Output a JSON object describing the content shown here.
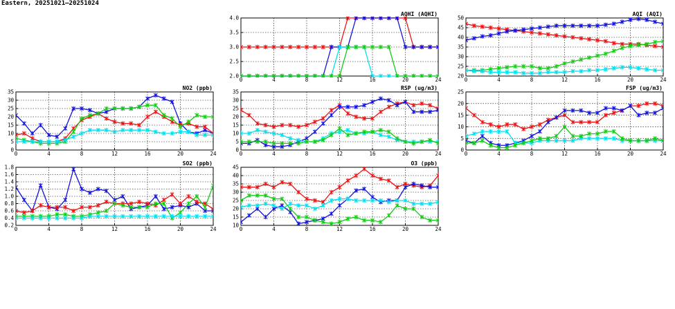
{
  "page": {
    "title": "Eastern, 20251021–20251024"
  },
  "series_colors": {
    "red": "#ee1111",
    "blue": "#1111dd",
    "green": "#11cc11",
    "cyan": "#00e0ee"
  },
  "chart_data": [
    {
      "id": "aqhi",
      "type": "line",
      "title": "AQHI (AQHI)",
      "xlim": [
        0,
        24
      ],
      "ylim": [
        2,
        4
      ],
      "xticks": [
        "0",
        "4",
        "8",
        "12",
        "16",
        "20",
        "24"
      ],
      "yticks": [
        "2.0",
        "2.5",
        "3.0",
        "3.5",
        "4.0"
      ],
      "series": [
        {
          "color": "red",
          "values": [
            3,
            3,
            3,
            3,
            3,
            3,
            3,
            3,
            3,
            3,
            3,
            3,
            3,
            4,
            4,
            4,
            4,
            4,
            4,
            4,
            4,
            3,
            3,
            3,
            3
          ]
        },
        {
          "color": "blue",
          "values": [
            2,
            2,
            2,
            2,
            2,
            2,
            2,
            2,
            2,
            2,
            2,
            3,
            3,
            3,
            4,
            4,
            4,
            4,
            4,
            4,
            3,
            3,
            3,
            3,
            3
          ]
        },
        {
          "color": "cyan",
          "values": [
            2,
            2,
            2,
            2,
            2,
            2,
            2,
            2,
            2,
            2,
            2,
            2,
            3,
            3,
            3,
            3,
            2,
            2,
            2,
            2,
            2,
            2,
            2,
            2,
            2
          ]
        },
        {
          "color": "green",
          "values": [
            2,
            2,
            2,
            2,
            2,
            2,
            2,
            2,
            2,
            2,
            2,
            2,
            2,
            3,
            3,
            3,
            3,
            3,
            3,
            2,
            2,
            2,
            2,
            2,
            2
          ]
        }
      ]
    },
    {
      "id": "aqi",
      "type": "line",
      "title": "AQI (AQI)",
      "xlim": [
        0,
        24
      ],
      "ylim": [
        20,
        50
      ],
      "xticks": [
        "0",
        "4",
        "8",
        "12",
        "16",
        "20",
        "24"
      ],
      "yticks": [
        "20",
        "25",
        "30",
        "35",
        "40",
        "45",
        "50"
      ],
      "series": [
        {
          "color": "red",
          "values": [
            47,
            46,
            45.5,
            45,
            44.5,
            44,
            43.5,
            43,
            42.5,
            42,
            41.5,
            41,
            40.5,
            40,
            39.5,
            39,
            38.5,
            38,
            37,
            36.5,
            36.5,
            36.5,
            36,
            35.5,
            35
          ]
        },
        {
          "color": "blue",
          "values": [
            38.5,
            39.5,
            40.5,
            41,
            42,
            43,
            43.5,
            44,
            44.5,
            45,
            45.5,
            46,
            46,
            46,
            46,
            46,
            46,
            46.5,
            47,
            48,
            49,
            49.5,
            49,
            48,
            47
          ]
        },
        {
          "color": "green",
          "values": [
            23,
            23,
            23,
            23.5,
            24,
            24.5,
            25,
            25,
            25,
            24,
            24,
            25,
            26.5,
            27.5,
            28.5,
            29.5,
            30.5,
            31.5,
            33,
            34.5,
            35.5,
            36,
            36.5,
            37.5,
            38
          ]
        },
        {
          "color": "cyan",
          "values": [
            23,
            22.5,
            22.5,
            22,
            22,
            22,
            22,
            21.5,
            21.5,
            21.5,
            22,
            22,
            22,
            22.5,
            22.5,
            23,
            23,
            23.5,
            24,
            24.5,
            24.5,
            24,
            23.5,
            23,
            23
          ]
        }
      ]
    },
    {
      "id": "no2",
      "type": "line",
      "title": "NO2 (ppb)",
      "xlim": [
        0,
        24
      ],
      "ylim": [
        0,
        35
      ],
      "xticks": [
        "0",
        "4",
        "8",
        "12",
        "16",
        "20",
        "24"
      ],
      "yticks": [
        "0",
        "5",
        "10",
        "15",
        "20",
        "25",
        "30",
        "35"
      ],
      "series": [
        {
          "color": "blue",
          "values": [
            21,
            16,
            10,
            15,
            9,
            8,
            13,
            25,
            25,
            24,
            22,
            23,
            25,
            25,
            25,
            26,
            31,
            33,
            31,
            29,
            16,
            11,
            10,
            12,
            10
          ]
        },
        {
          "color": "red",
          "values": [
            9,
            10,
            7,
            5,
            5,
            5,
            7,
            13,
            18,
            20,
            22,
            19,
            17,
            16,
            16,
            15,
            20,
            23,
            20,
            17,
            15,
            16,
            14,
            14,
            10
          ]
        },
        {
          "color": "green",
          "values": [
            7,
            6,
            5,
            4,
            4,
            4,
            5,
            11,
            19,
            21,
            22,
            25,
            25,
            25,
            25,
            26,
            27,
            27,
            21,
            19,
            14,
            17,
            21,
            20,
            20
          ]
        },
        {
          "color": "cyan",
          "values": [
            5,
            5,
            5,
            5,
            5,
            5,
            6,
            8,
            10,
            12,
            12,
            12,
            11,
            12,
            12,
            12,
            12,
            11,
            10,
            10,
            11,
            11,
            9,
            9,
            9
          ]
        }
      ]
    },
    {
      "id": "rsp",
      "type": "line",
      "title": "RSP (ug/m3)",
      "xlim": [
        0,
        24
      ],
      "ylim": [
        0,
        35
      ],
      "xticks": [
        "0",
        "4",
        "8",
        "12",
        "16",
        "20",
        "24"
      ],
      "yticks": [
        "0",
        "5",
        "10",
        "15",
        "20",
        "25",
        "30",
        "35"
      ],
      "series": [
        {
          "color": "red",
          "values": [
            24,
            21,
            16,
            15,
            14,
            15,
            15,
            14,
            15,
            17,
            19,
            24,
            27,
            22,
            20,
            19,
            19,
            23,
            26,
            28,
            29,
            27,
            28,
            27,
            25
          ]
        },
        {
          "color": "blue",
          "values": [
            4,
            4,
            6,
            3,
            2,
            2,
            3,
            5,
            7,
            11,
            16,
            21,
            26,
            26,
            26,
            27,
            29,
            31,
            30,
            27,
            29,
            23,
            23,
            23,
            24
          ]
        },
        {
          "color": "cyan",
          "values": [
            10,
            10,
            12,
            11,
            10,
            9,
            7,
            6,
            5,
            5,
            7,
            10,
            11,
            12,
            10,
            10,
            11,
            9,
            8,
            6,
            5,
            5,
            5,
            5,
            5
          ]
        },
        {
          "color": "green",
          "values": [
            5,
            5,
            5,
            5,
            4,
            4,
            4,
            4,
            5,
            5,
            6,
            9,
            13,
            9,
            10,
            11,
            11,
            12,
            11,
            7,
            5,
            4,
            5,
            6,
            4
          ]
        }
      ]
    },
    {
      "id": "fsp",
      "type": "line",
      "title": "FSP (ug/m3)",
      "xlim": [
        0,
        24
      ],
      "ylim": [
        0,
        25
      ],
      "xticks": [
        "0",
        "4",
        "8",
        "12",
        "16",
        "20",
        "24"
      ],
      "yticks": [
        "0",
        "5",
        "10",
        "15",
        "20",
        "25"
      ],
      "series": [
        {
          "color": "red",
          "values": [
            18,
            15,
            12,
            11,
            10,
            11,
            11,
            9,
            10,
            11,
            13,
            14,
            15,
            12,
            12,
            12,
            12,
            15,
            16,
            17,
            19,
            19,
            20,
            20,
            19
          ]
        },
        {
          "color": "blue",
          "values": [
            4,
            3,
            6,
            3,
            2,
            2,
            3,
            4,
            6,
            8,
            12,
            14,
            17,
            17,
            17,
            16,
            16,
            18,
            18,
            17,
            19,
            15,
            16,
            16,
            18
          ]
        },
        {
          "color": "cyan",
          "values": [
            6,
            7,
            8,
            8,
            8,
            8,
            3,
            3,
            3,
            4,
            4,
            4,
            4,
            4,
            5,
            5,
            5,
            5,
            5,
            4,
            4,
            4,
            4,
            4,
            4
          ]
        },
        {
          "color": "green",
          "values": [
            3,
            3,
            4,
            2,
            1,
            1,
            2,
            3,
            4,
            5,
            5,
            6,
            10,
            6,
            6,
            7,
            7,
            8,
            8,
            5,
            4,
            4,
            4,
            5,
            4
          ]
        }
      ]
    },
    {
      "id": "so2",
      "type": "line",
      "title": "SO2 (ppb)",
      "xlim": [
        0,
        24
      ],
      "ylim": [
        0.2,
        1.8
      ],
      "xticks": [
        "0",
        "4",
        "8",
        "12",
        "16",
        "20",
        "24"
      ],
      "yticks": [
        "0.2",
        "0.4",
        "0.6",
        "0.8",
        "1.0",
        "1.2",
        "1.4",
        "1.6",
        "1.8"
      ],
      "series": [
        {
          "color": "blue",
          "values": [
            1.25,
            0.9,
            0.6,
            1.3,
            0.7,
            0.65,
            0.9,
            1.75,
            1.2,
            1.1,
            1.2,
            1.15,
            0.9,
            1.0,
            0.65,
            0.7,
            0.75,
            1.0,
            0.65,
            0.7,
            0.75,
            0.7,
            0.8,
            0.6,
            0.6
          ]
        },
        {
          "color": "red",
          "values": [
            0.6,
            0.55,
            0.6,
            0.75,
            0.7,
            0.7,
            0.7,
            0.6,
            0.7,
            0.7,
            0.75,
            0.85,
            0.8,
            0.8,
            0.8,
            0.85,
            0.8,
            0.75,
            0.9,
            1.05,
            0.8,
            1.0,
            0.85,
            0.8,
            0.65
          ]
        },
        {
          "color": "green",
          "values": [
            0.45,
            0.45,
            0.45,
            0.45,
            0.45,
            0.5,
            0.5,
            0.45,
            0.45,
            0.5,
            0.55,
            0.6,
            0.8,
            0.75,
            0.7,
            0.7,
            0.7,
            0.8,
            0.8,
            0.4,
            0.55,
            0.8,
            1.0,
            0.7,
            1.3
          ]
        },
        {
          "color": "cyan",
          "values": [
            0.4,
            0.4,
            0.4,
            0.4,
            0.4,
            0.4,
            0.4,
            0.4,
            0.4,
            0.45,
            0.45,
            0.45,
            0.45,
            0.45,
            0.45,
            0.45,
            0.45,
            0.45,
            0.45,
            0.45,
            0.45,
            0.45,
            0.45,
            0.45,
            0.45
          ]
        }
      ]
    },
    {
      "id": "o3",
      "type": "line",
      "title": "O3 (ppb)",
      "xlim": [
        0,
        24
      ],
      "ylim": [
        10,
        45
      ],
      "xticks": [
        "0",
        "4",
        "8",
        "12",
        "16",
        "20",
        "24"
      ],
      "yticks": [
        "10",
        "15",
        "20",
        "25",
        "30",
        "35",
        "40",
        "45"
      ],
      "series": [
        {
          "color": "red",
          "values": [
            33,
            33,
            33,
            35,
            33,
            36,
            35,
            30,
            26,
            25,
            24,
            30,
            33,
            37,
            40,
            44,
            40,
            38,
            37,
            33,
            35,
            34,
            33,
            34,
            40
          ]
        },
        {
          "color": "blue",
          "values": [
            12,
            16,
            20,
            15,
            20,
            22,
            18,
            11,
            12,
            13,
            14,
            17,
            22,
            26,
            31,
            32,
            27,
            24,
            25,
            25,
            33,
            35,
            34,
            33,
            33
          ]
        },
        {
          "color": "cyan",
          "values": [
            21,
            22,
            22,
            23,
            22,
            20,
            23,
            22,
            22,
            20,
            22,
            25,
            26,
            26,
            25,
            25,
            25,
            25,
            24,
            25,
            25,
            23,
            23,
            23,
            24
          ]
        },
        {
          "color": "green",
          "values": [
            25,
            28,
            28,
            28,
            26,
            26,
            20,
            15,
            15,
            13,
            12,
            11,
            12,
            14,
            15,
            13,
            13,
            12,
            16,
            22,
            20,
            20,
            15,
            13,
            13
          ]
        }
      ]
    }
  ]
}
